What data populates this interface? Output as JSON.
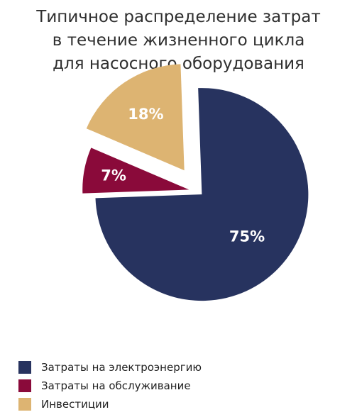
{
  "chart_data": {
    "type": "pie",
    "title_lines": [
      "Типичное распределение затрат",
      "в течение жизненного цикла",
      "для насосного оборудования"
    ],
    "slices": [
      {
        "name": "Затраты на электроэнергию",
        "value": 75,
        "label": "75%",
        "color": "#27335f"
      },
      {
        "name": "Затраты на обслуживание",
        "value": 7,
        "label": "7%",
        "color": "#8a0a3a"
      },
      {
        "name": "Инвестиции",
        "value": 18,
        "label": "18%",
        "color": "#ddb472"
      }
    ],
    "exploded": true,
    "legend_position": "bottom-left"
  }
}
